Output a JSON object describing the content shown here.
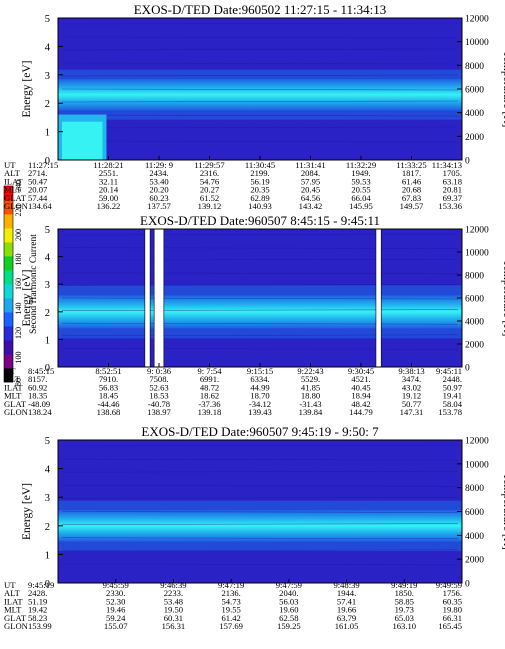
{
  "chart_data": [
    {
      "type": "heatmap",
      "title": "EXOS-D/TED   Date:960502   11:27:15 - 11:34:13",
      "ylabel": "Energy [eV]",
      "y2label": "Temperature [K]",
      "ylim": [
        0,
        5
      ],
      "y2lim": [
        0,
        12000
      ],
      "yticks": [
        "0",
        "1",
        "2",
        "3",
        "4",
        "5"
      ],
      "y2ticks": [
        "0",
        "2000",
        "4000",
        "6000",
        "8000",
        "10000",
        "12000"
      ],
      "band": {
        "center_ev": 2.3,
        "halfwidth_ev": 0.55
      },
      "gaps": [],
      "low_energy_patch": {
        "x_frac": [
          0.0,
          0.12
        ],
        "energy_ev": [
          0,
          1.6
        ]
      },
      "orbit_rows": [
        {
          "label": "UT",
          "values": [
            "11:27:15",
            "11:28:21",
            "11:29: 9",
            "11:29:57",
            "11:30:45",
            "11:31:41",
            "11:32:29",
            "11:33:25",
            "11:34:13"
          ]
        },
        {
          "label": "ALT",
          "values": [
            "2714.",
            "2551.",
            "2434.",
            "2316.",
            "2199.",
            "2084.",
            "1949.",
            "1817.",
            "1705."
          ]
        },
        {
          "label": "ILAT",
          "values": [
            "50.47",
            "32.11",
            "53.40",
            "54.76",
            "56.19",
            "57.95",
            "59.53",
            "61.46",
            "63.18"
          ]
        },
        {
          "label": "MLT",
          "values": [
            "20.07",
            "20.14",
            "20.20",
            "20.27",
            "20.35",
            "20.45",
            "20.55",
            "20.68",
            "20.81"
          ]
        },
        {
          "label": "GLAT",
          "values": [
            "57.44",
            "59.00",
            "60.23",
            "61.52",
            "62.89",
            "64.56",
            "66.04",
            "67.83",
            "69.37"
          ]
        },
        {
          "label": "GLON",
          "values": [
            "134.64",
            "136.22",
            "137.57",
            "139.12",
            "140.93",
            "143.42",
            "145.95",
            "149.57",
            "153.36"
          ]
        }
      ]
    },
    {
      "type": "heatmap",
      "title": "EXOS-D/TED   Date:960507   8:45:15 - 9:45:11",
      "ylabel": "Energy [eV]",
      "y2label": "Temperature [K]",
      "ylim": [
        0,
        5
      ],
      "y2lim": [
        0,
        12000
      ],
      "yticks": [
        "0",
        "1",
        "2",
        "3",
        "4",
        "5"
      ],
      "y2ticks": [
        "0",
        "2000",
        "4000",
        "6000",
        "8000",
        "10000",
        "12000"
      ],
      "band": {
        "center_ev": 2.0,
        "halfwidth_ev": 0.6
      },
      "gaps": [
        [
          0.215,
          0.228
        ],
        [
          0.238,
          0.262
        ],
        [
          0.787,
          0.8
        ]
      ],
      "orbit_rows": [
        {
          "label": "UT",
          "values": [
            "8:45:15",
            "8:52:51",
            "9: 0:36",
            "9: 7:54",
            "9:15:15",
            "9:22:43",
            "9:30:45",
            "9:38:13",
            "9:45:11"
          ]
        },
        {
          "label": "ALT",
          "values": [
            "8157.",
            "7910.",
            "7508.",
            "6991.",
            "6334.",
            "5529.",
            "4521.",
            "3474.",
            "2448."
          ]
        },
        {
          "label": "ILAT",
          "values": [
            "60.92",
            "56.83",
            "52.63",
            "48.72",
            "44.99",
            "41.85",
            "40.45",
            "43.02",
            "50.97"
          ]
        },
        {
          "label": "MLT",
          "values": [
            "18.35",
            "18.45",
            "18.53",
            "18.62",
            "18.70",
            "18.80",
            "18.94",
            "19.12",
            "19.41"
          ]
        },
        {
          "label": "GLAT",
          "values": [
            "-48.09",
            "-44.46",
            "-40.78",
            "-37.36",
            "-34.12",
            "-31.43",
            "48.42",
            "50.77",
            "58.04"
          ]
        },
        {
          "label": "GLON",
          "values": [
            "138.24",
            "138.68",
            "138.97",
            "139.18",
            "139.43",
            "139.84",
            "144.79",
            "147.31",
            "153.78"
          ]
        }
      ]
    },
    {
      "type": "heatmap",
      "title": "EXOS-D/TED   Date:960507   9:45:19 - 9:50: 7",
      "ylabel": "Energy [eV]",
      "y2label": "Temperature [K]",
      "ylim": [
        0,
        5
      ],
      "y2lim": [
        0,
        12000
      ],
      "yticks": [
        "0",
        "1",
        "2",
        "3",
        "4",
        "5"
      ],
      "y2ticks": [
        "0",
        "2000",
        "4000",
        "6000",
        "8000",
        "10000",
        "12000"
      ],
      "band": {
        "center_ev": 2.0,
        "halfwidth_ev": 0.55
      },
      "gaps": [],
      "orbit_rows": [
        {
          "label": "UT",
          "values": [
            "9:45:19",
            "9:45:59",
            "9:46:39",
            "9:47:19",
            "9:47:59",
            "9:48:39",
            "9:49:19",
            "9:49:59"
          ]
        },
        {
          "label": "ALT",
          "values": [
            "2428.",
            "2330.",
            "2233.",
            "2136.",
            "2040.",
            "1944.",
            "1850.",
            "1756."
          ]
        },
        {
          "label": "ILAT",
          "values": [
            "51.19",
            "52.30",
            "53.48",
            "54.73",
            "56.03",
            "57.41",
            "58.85",
            "60.35"
          ]
        },
        {
          "label": "MLT",
          "values": [
            "19.42",
            "19.46",
            "19.50",
            "19.55",
            "19.60",
            "19.66",
            "19.73",
            "19.80"
          ]
        },
        {
          "label": "GLAT",
          "values": [
            "58.23",
            "59.24",
            "60.31",
            "61.42",
            "62.58",
            "63.79",
            "65.03",
            "66.31"
          ]
        },
        {
          "label": "GLON",
          "values": [
            "153.99",
            "155.07",
            "156.31",
            "157.69",
            "159.25",
            "161.05",
            "163.10",
            "165.45"
          ]
        }
      ]
    }
  ],
  "colorbar": {
    "label": "Second Harmonic Current",
    "ticks": [
      "80",
      "100",
      "120",
      "140",
      "160",
      "180",
      "200",
      "220",
      "240"
    ],
    "colors": [
      "#000000",
      "#7a0088",
      "#3a10aa",
      "#2a2ad8",
      "#1b62ff",
      "#1aa8f0",
      "#10d8d8",
      "#00e08a",
      "#10d020",
      "#8ae000",
      "#f0f000",
      "#ffb000",
      "#ff5000",
      "#ff0000"
    ]
  },
  "colors": {
    "background": "#2b22c6",
    "mid": "#1f5fe4",
    "band": "#21b6ee",
    "core": "#36f2f2",
    "dark": "#17149a"
  }
}
